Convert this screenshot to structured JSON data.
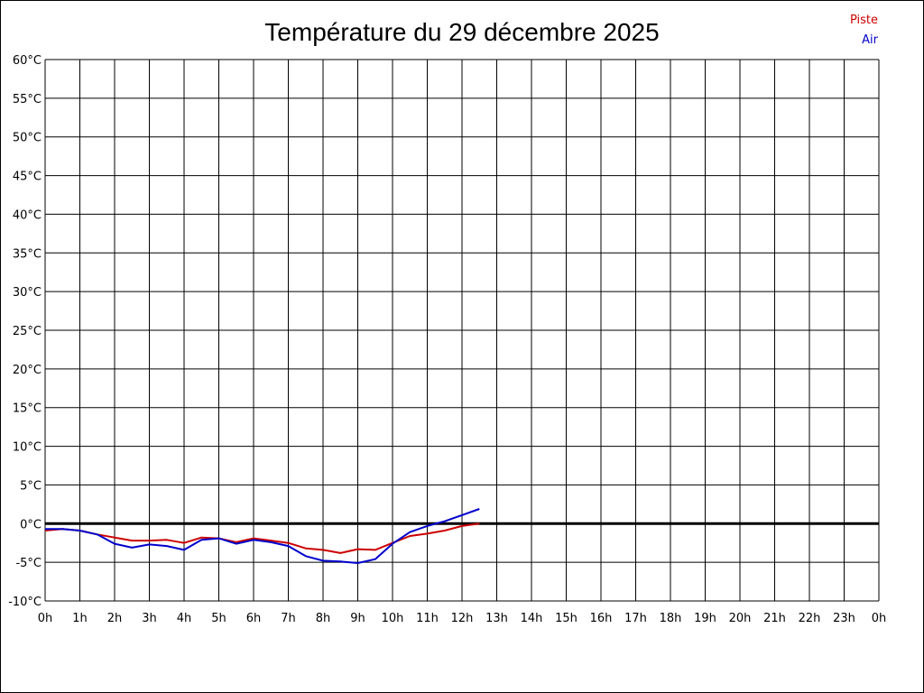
{
  "chart_data": {
    "type": "line",
    "title": "Température du 29 décembre 2025",
    "xlabel": "",
    "ylabel": "",
    "x_ticks": [
      "0h",
      "1h",
      "2h",
      "3h",
      "4h",
      "5h",
      "6h",
      "7h",
      "8h",
      "9h",
      "10h",
      "11h",
      "12h",
      "13h",
      "14h",
      "15h",
      "16h",
      "17h",
      "18h",
      "19h",
      "20h",
      "21h",
      "22h",
      "23h",
      "0h"
    ],
    "y_ticks": [
      "60°C",
      "55°C",
      "50°C",
      "45°C",
      "40°C",
      "35°C",
      "30°C",
      "25°C",
      "20°C",
      "15°C",
      "10°C",
      "5°C",
      "0°C",
      "-5°C",
      "-10°C"
    ],
    "xlim": [
      0,
      24
    ],
    "ylim": [
      -10,
      60
    ],
    "grid": true,
    "zero_line": true,
    "legend_position": "top-right",
    "series": [
      {
        "name": "Piste",
        "color": "#cc0000",
        "x": [
          0,
          0.5,
          1,
          1.5,
          2,
          2.5,
          3,
          3.5,
          4,
          4.5,
          5,
          5.5,
          6,
          6.5,
          7,
          7.5,
          8,
          8.5,
          9,
          9.5,
          10,
          10.5,
          11,
          11.5,
          12,
          12.5
        ],
        "y": [
          -0.9,
          -0.7,
          -0.9,
          -1.4,
          -1.8,
          -2.2,
          -2.2,
          -2.1,
          -2.5,
          -1.8,
          -1.9,
          -2.4,
          -1.9,
          -2.2,
          -2.5,
          -3.2,
          -3.4,
          -3.8,
          -3.3,
          -3.4,
          -2.5,
          -1.6,
          -1.3,
          -0.9,
          -0.3,
          0.0
        ]
      },
      {
        "name": "Air",
        "color": "#0000cc",
        "x": [
          0,
          0.5,
          1,
          1.5,
          2,
          2.5,
          3,
          3.5,
          4,
          4.5,
          5,
          5.5,
          6,
          6.5,
          7,
          7.5,
          8,
          8.5,
          9,
          9.5,
          10,
          10.5,
          11,
          11.5,
          12,
          12.5
        ],
        "y": [
          -0.7,
          -0.7,
          -0.9,
          -1.4,
          -2.6,
          -3.1,
          -2.7,
          -2.9,
          -3.4,
          -2.1,
          -1.9,
          -2.6,
          -2.1,
          -2.4,
          -2.9,
          -4.2,
          -4.8,
          -4.9,
          -5.1,
          -4.6,
          -2.6,
          -1.1,
          -0.3,
          0.3,
          1.1,
          1.9
        ]
      }
    ]
  }
}
